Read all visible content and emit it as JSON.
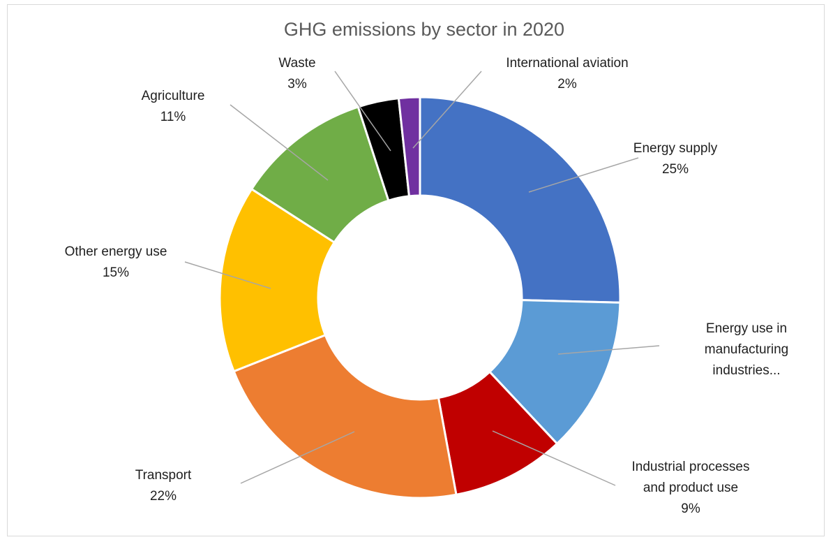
{
  "chart_data": {
    "type": "pie",
    "variant": "doughnut",
    "title": "GHG emissions by sector in 2020",
    "legend": "none",
    "data_labels": "category name and percentage with leader lines",
    "slices": [
      {
        "label_lines": [
          "Energy supply"
        ],
        "value_label": "25%",
        "value": 25.4,
        "color": "#4472C4"
      },
      {
        "label_lines": [
          "Energy use in",
          "manufacturing",
          "industries..."
        ],
        "value_label": "",
        "value": 12.6,
        "color": "#5B9BD5"
      },
      {
        "label_lines": [
          "Industrial processes",
          "and product use"
        ],
        "value_label": "9%",
        "value": 9.1,
        "color": "#C00000"
      },
      {
        "label_lines": [
          "Transport"
        ],
        "value_label": "22%",
        "value": 21.9,
        "color": "#ED7D31"
      },
      {
        "label_lines": [
          "Other energy use"
        ],
        "value_label": "15%",
        "value": 15.1,
        "color": "#FFC000"
      },
      {
        "label_lines": [
          "Agriculture"
        ],
        "value_label": "11%",
        "value": 10.9,
        "color": "#70AD47"
      },
      {
        "label_lines": [
          "Waste"
        ],
        "value_label": "3%",
        "value": 3.3,
        "color": "#000000"
      },
      {
        "label_lines": [
          "International aviation"
        ],
        "value_label": "2%",
        "value": 1.7,
        "color": "#7030A0"
      }
    ]
  }
}
